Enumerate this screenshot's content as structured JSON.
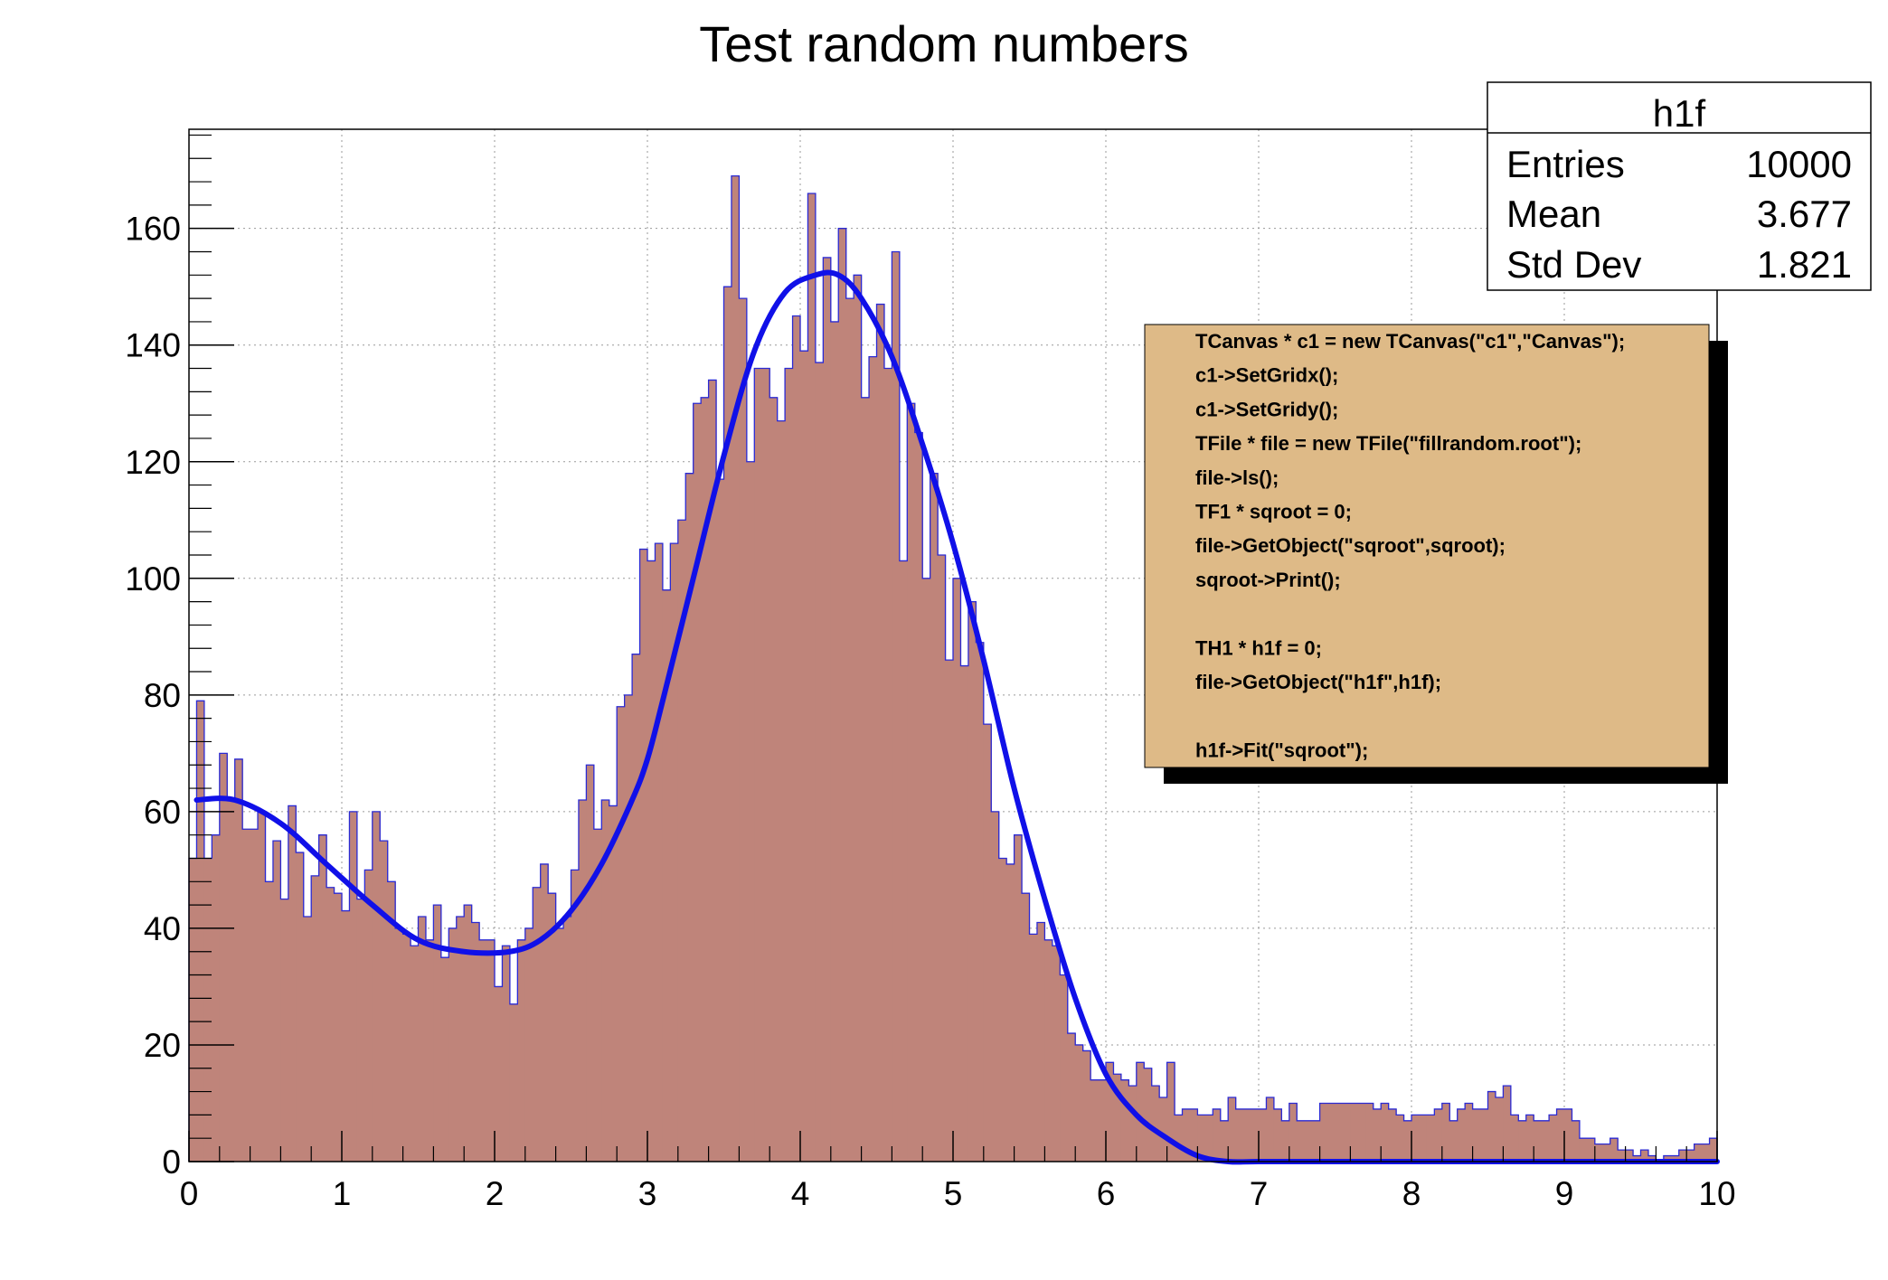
{
  "chart_data": {
    "type": "bar",
    "title": "Test random numbers",
    "xlabel": "",
    "ylabel": "",
    "xlim": [
      0,
      10
    ],
    "ylim": [
      0,
      177
    ],
    "grid": true,
    "bin_width": 0.05,
    "x_ticks": [
      "0",
      "1",
      "2",
      "3",
      "4",
      "5",
      "6",
      "7",
      "8",
      "9",
      "10"
    ],
    "y_ticks": [
      "0",
      "20",
      "40",
      "60",
      "80",
      "100",
      "120",
      "140",
      "160"
    ],
    "series": [
      {
        "kind": "histogram",
        "values": [
          52,
          79,
          52,
          56,
          70,
          62,
          69,
          57,
          57,
          60,
          48,
          55,
          45,
          61,
          53,
          42,
          49,
          56,
          47,
          46,
          43,
          60,
          45,
          50,
          60,
          55,
          48,
          40,
          39,
          37,
          42,
          38,
          44,
          35,
          40,
          42,
          44,
          41,
          38,
          38,
          30,
          37,
          27,
          38,
          40,
          47,
          51,
          46,
          40,
          42,
          50,
          62,
          68,
          57,
          62,
          61,
          78,
          80,
          87,
          105,
          103,
          106,
          98,
          106,
          110,
          118,
          130,
          131,
          134,
          117,
          150,
          169,
          148,
          120,
          136,
          136,
          131,
          127,
          136,
          145,
          139,
          166,
          137,
          155,
          144,
          160,
          148,
          152,
          131,
          138,
          147,
          136,
          156,
          103,
          130,
          125,
          100,
          118,
          104,
          86,
          100,
          85,
          96,
          89,
          75,
          60,
          52,
          51,
          56,
          46,
          39,
          41,
          38,
          37,
          32,
          22,
          20,
          19,
          14,
          14,
          17,
          15,
          14,
          13,
          17,
          16,
          13,
          11,
          17,
          8,
          9,
          9,
          8,
          8,
          9,
          7,
          11,
          9,
          9,
          9,
          9,
          11,
          9,
          7,
          10,
          7,
          7,
          7,
          10,
          10,
          10,
          10,
          10,
          10,
          10,
          9,
          10,
          9,
          8,
          7,
          8,
          8,
          8,
          9,
          10,
          7,
          9,
          10,
          9,
          9,
          12,
          11,
          13,
          8,
          7,
          8,
          7,
          7,
          8,
          9,
          9,
          7,
          4,
          4,
          3,
          3,
          4,
          2,
          2,
          1,
          2,
          1,
          0,
          1,
          1,
          2,
          2,
          3,
          3,
          4
        ],
        "fill_color": "#bf847a",
        "line_color": "#2a2ad4"
      },
      {
        "kind": "fit",
        "x": [
          0.05,
          0.3,
          0.6,
          0.9,
          1.2,
          1.5,
          1.8,
          2.1,
          2.3,
          2.5,
          2.7,
          2.9,
          3.0,
          3.1,
          3.3,
          3.5,
          3.7,
          3.9,
          4.1,
          4.25,
          4.4,
          4.6,
          4.8,
          5.0,
          5.2,
          5.4,
          5.6,
          5.8,
          6.0,
          6.2,
          6.4,
          6.6,
          6.8,
          7.0,
          7.5,
          8.0,
          8.5,
          9.0,
          9.2,
          9.45,
          9.7,
          10.0
        ],
        "y": [
          62,
          62,
          58,
          51,
          44,
          38,
          36,
          36,
          38,
          43,
          51,
          62,
          69,
          79,
          100,
          121,
          139,
          149,
          152,
          152,
          148,
          138,
          123,
          106,
          86,
          64,
          45,
          28,
          15,
          8,
          4,
          1,
          0,
          0,
          0,
          0,
          0,
          0,
          0,
          0,
          0,
          0
        ],
        "color": "#1010e8"
      }
    ],
    "stats_box": {
      "name": "h1f",
      "rows": [
        {
          "label": "Entries",
          "value": "10000"
        },
        {
          "label": "Mean",
          "value": "3.677"
        },
        {
          "label": "Std Dev",
          "value": "1.821"
        }
      ]
    },
    "code_box": {
      "bg_color": "#deba87",
      "lines": [
        "TCanvas * c1 = new TCanvas(\"c1\",\"Canvas\");",
        "c1->SetGridx();",
        "c1->SetGridy();",
        "TFile * file = new TFile(\"fillrandom.root\");",
        "file->ls();",
        "TF1 * sqroot = 0;",
        "file->GetObject(\"sqroot\",sqroot);",
        "sqroot->Print();",
        "",
        "TH1 * h1f = 0;",
        "file->GetObject(\"h1f\",h1f);",
        "",
        "h1f->Fit(\"sqroot\");"
      ]
    }
  }
}
